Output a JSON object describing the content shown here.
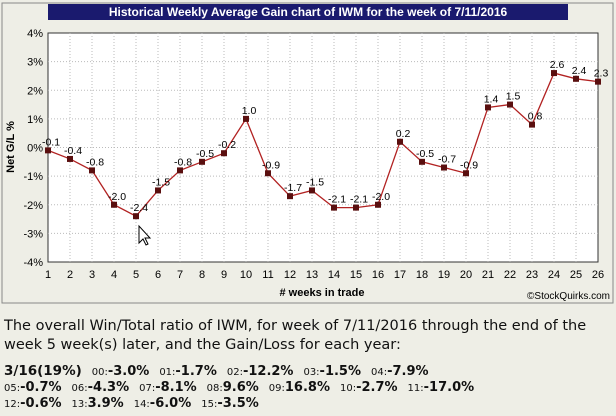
{
  "chart_data": {
    "type": "line",
    "title": "Historical Weekly Average Gain chart of IWM for the week of 7/11/2016",
    "xlabel": "# weeks in trade",
    "ylabel": "Net G/L %",
    "ylim": [
      -4,
      4
    ],
    "yticks": [
      "-4%",
      "-3%",
      "-2%",
      "-1%",
      "0%",
      "1%",
      "2%",
      "3%",
      "4%"
    ],
    "x": [
      1,
      2,
      3,
      4,
      5,
      6,
      7,
      8,
      9,
      10,
      11,
      12,
      13,
      14,
      15,
      16,
      17,
      18,
      19,
      20,
      21,
      22,
      23,
      24,
      25,
      26
    ],
    "values": [
      -0.1,
      -0.4,
      -0.8,
      -2.0,
      -2.4,
      -1.5,
      -0.8,
      -0.5,
      -0.2,
      1.0,
      -0.9,
      -1.7,
      -1.5,
      -2.1,
      -2.1,
      -2.0,
      0.2,
      -0.5,
      -0.7,
      -0.9,
      1.4,
      1.5,
      0.8,
      2.6,
      2.4,
      2.3
    ],
    "labels": [
      "-0.1",
      "-0.4",
      "-0.8",
      "-2.0",
      "-2.4",
      "-1.5",
      "-0.8",
      "-0.5",
      "-0.2",
      "1.0",
      "-0.9",
      "-1.7",
      "-1.5",
      "-2.1",
      "-2.1",
      "-2.0",
      "0.2",
      "-0.5",
      "-0.7",
      "-0.9",
      "1.4",
      "1.5",
      "0.8",
      "2.6",
      "2.4",
      "2.3"
    ],
    "grid": true,
    "credit": "©StockQuirks.com",
    "line_color": "#B22222",
    "marker_color": "#5A0F0F"
  },
  "summary_text": "The overall Win/Total ratio of IWM, for week of 7/11/2016 through the end of the week 5 week(s) later, and the Gain/Loss for each year:",
  "stats": {
    "ratio": "3/16(19%)",
    "years": [
      {
        "yr": "00:",
        "val": "-3.0%"
      },
      {
        "yr": "01:",
        "val": "-1.7%"
      },
      {
        "yr": "02:",
        "val": "-12.2%"
      },
      {
        "yr": "03:",
        "val": "-1.5%"
      },
      {
        "yr": "04:",
        "val": "-7.9%"
      },
      {
        "yr": "05:",
        "val": "-0.7%"
      },
      {
        "yr": "06:",
        "val": "-4.3%"
      },
      {
        "yr": "07:",
        "val": "-8.1%"
      },
      {
        "yr": "08:",
        "val": "9.6%"
      },
      {
        "yr": "09:",
        "val": "16.8%"
      },
      {
        "yr": "10:",
        "val": "-2.7%"
      },
      {
        "yr": "11:",
        "val": "-17.0%"
      },
      {
        "yr": "12:",
        "val": "-0.6%"
      },
      {
        "yr": "13:",
        "val": "3.9%"
      },
      {
        "yr": "14:",
        "val": "-6.0%"
      },
      {
        "yr": "15:",
        "val": "-3.5%"
      }
    ]
  }
}
